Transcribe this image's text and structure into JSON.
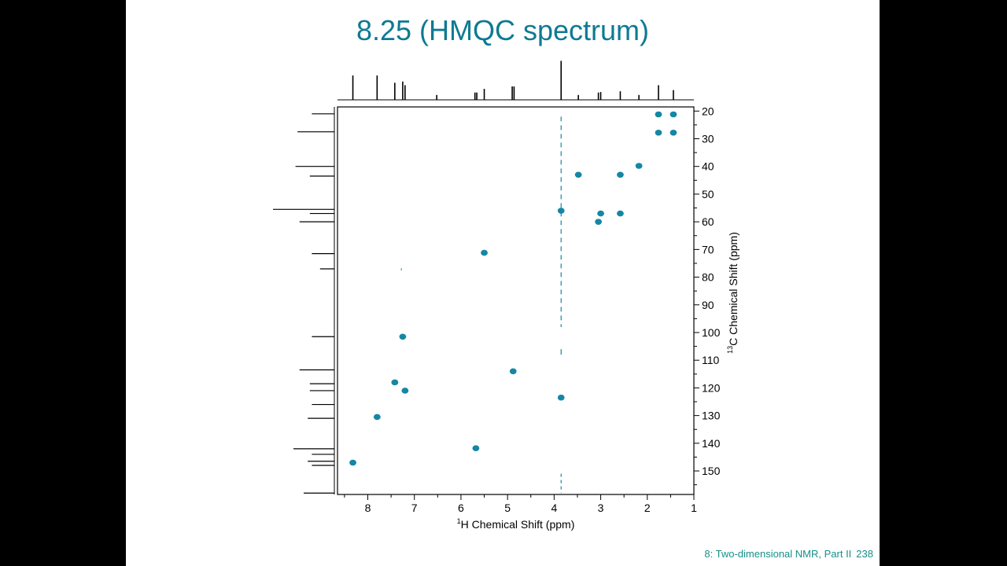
{
  "slide": {
    "title": "8.25 (HMQC spectrum)",
    "footer_text": "8: Two-dimensional NMR, Part II",
    "page_number": "238"
  },
  "colors": {
    "slide_title": "#0e7a92",
    "contour": "#1487a4",
    "footer": "#159088",
    "background": "#000000"
  },
  "chart_data": {
    "type": "scatter",
    "title": "",
    "xlabel_sup": "1",
    "xlabel": "H Chemical Shift (ppm)",
    "ylabel_sup": "13",
    "ylabel": "C Chemical Shift (ppm)",
    "xlim": [
      8.65,
      1.0
    ],
    "ylim": [
      18.5,
      158.5
    ],
    "x_ticks": [
      8,
      7,
      6,
      5,
      4,
      3,
      2,
      1
    ],
    "y_ticks": [
      20,
      30,
      40,
      50,
      60,
      70,
      80,
      90,
      100,
      110,
      120,
      130,
      140,
      150
    ],
    "grid": false,
    "x_reversed": true,
    "cross_peaks": [
      {
        "h": 8.32,
        "c": 147.0
      },
      {
        "h": 7.8,
        "c": 130.5
      },
      {
        "h": 7.42,
        "c": 118.0
      },
      {
        "h": 7.25,
        "c": 101.5
      },
      {
        "h": 7.2,
        "c": 121.0
      },
      {
        "h": 5.68,
        "c": 141.8
      },
      {
        "h": 5.5,
        "c": 71.2
      },
      {
        "h": 4.88,
        "c": 114.0
      },
      {
        "h": 3.85,
        "c": 56.0
      },
      {
        "h": 3.85,
        "c": 123.5
      },
      {
        "h": 3.48,
        "c": 43.0
      },
      {
        "h": 3.0,
        "c": 57.0
      },
      {
        "h": 3.05,
        "c": 60.0
      },
      {
        "h": 2.58,
        "c": 43.0
      },
      {
        "h": 2.58,
        "c": 57.0
      },
      {
        "h": 2.18,
        "c": 39.8
      },
      {
        "h": 1.76,
        "c": 21.2
      },
      {
        "h": 1.44,
        "c": 21.2
      },
      {
        "h": 1.76,
        "c": 27.8
      },
      {
        "h": 1.44,
        "c": 27.8
      }
    ],
    "h1_projection_peaks": [
      {
        "ppm": 8.32,
        "height": 1.0
      },
      {
        "ppm": 7.8,
        "height": 1.0
      },
      {
        "ppm": 7.42,
        "height": 0.7
      },
      {
        "ppm": 7.25,
        "height": 0.75
      },
      {
        "ppm": 7.2,
        "height": 0.6
      },
      {
        "ppm": 6.52,
        "height": 0.2
      },
      {
        "ppm": 5.7,
        "height": 0.3
      },
      {
        "ppm": 5.66,
        "height": 0.3
      },
      {
        "ppm": 5.5,
        "height": 0.45
      },
      {
        "ppm": 4.9,
        "height": 0.55
      },
      {
        "ppm": 4.86,
        "height": 0.55
      },
      {
        "ppm": 3.85,
        "height": 1.6
      },
      {
        "ppm": 3.48,
        "height": 0.2
      },
      {
        "ppm": 3.05,
        "height": 0.3
      },
      {
        "ppm": 3.0,
        "height": 0.32
      },
      {
        "ppm": 2.58,
        "height": 0.35
      },
      {
        "ppm": 2.18,
        "height": 0.2
      },
      {
        "ppm": 1.76,
        "height": 0.6
      },
      {
        "ppm": 1.44,
        "height": 0.4
      }
    ],
    "c13_projection_peaks": [
      {
        "ppm": 21.0,
        "height": 0.55
      },
      {
        "ppm": 27.5,
        "height": 0.9
      },
      {
        "ppm": 40.0,
        "height": 0.95
      },
      {
        "ppm": 43.5,
        "height": 0.6
      },
      {
        "ppm": 55.5,
        "height": 1.5
      },
      {
        "ppm": 57.0,
        "height": 0.6
      },
      {
        "ppm": 60.0,
        "height": 0.85
      },
      {
        "ppm": 71.5,
        "height": 0.55
      },
      {
        "ppm": 77.0,
        "height": 0.35
      },
      {
        "ppm": 101.5,
        "height": 0.55
      },
      {
        "ppm": 113.5,
        "height": 0.85
      },
      {
        "ppm": 118.5,
        "height": 0.6
      },
      {
        "ppm": 121.0,
        "height": 0.6
      },
      {
        "ppm": 126.0,
        "height": 0.55
      },
      {
        "ppm": 131.0,
        "height": 0.65
      },
      {
        "ppm": 142.0,
        "height": 1.0
      },
      {
        "ppm": 144.0,
        "height": 0.55
      },
      {
        "ppm": 146.5,
        "height": 0.65
      },
      {
        "ppm": 148.0,
        "height": 0.55
      },
      {
        "ppm": 158.0,
        "height": 0.75
      }
    ],
    "t1_noise_ridge": {
      "h": 3.85,
      "c_from": 22,
      "c_to": 158
    }
  }
}
